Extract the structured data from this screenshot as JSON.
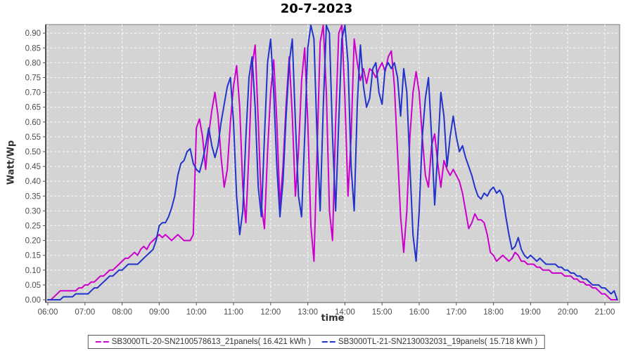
{
  "title": "20-7-2023",
  "colors": {
    "series1": "#CC00CC",
    "series2": "#2233CC",
    "plot_bg": "#D4D4D4",
    "grid": "#FFFFFF",
    "tick_text": "#4D4D4D",
    "axis": "#555555"
  },
  "chart_data": {
    "type": "line",
    "title": "20-7-2023",
    "xlabel": "time",
    "ylabel": "Watt/Wp",
    "legend_position": "bottom",
    "grid": true,
    "plot_background": "#D4D4D4",
    "x_start_hour": 6,
    "x_interval_min": 5,
    "x_ticks": [
      "06:00",
      "07:00",
      "08:00",
      "09:00",
      "10:00",
      "11:00",
      "12:00",
      "13:00",
      "14:00",
      "15:00",
      "16:00",
      "17:00",
      "18:00",
      "19:00",
      "20:00",
      "21:00"
    ],
    "y_ticks": [
      "0.00",
      "0.05",
      "0.10",
      "0.15",
      "0.20",
      "0.25",
      "0.30",
      "0.35",
      "0.40",
      "0.45",
      "0.50",
      "0.55",
      "0.60",
      "0.65",
      "0.70",
      "0.75",
      "0.80",
      "0.85",
      "0.90"
    ],
    "ylim": [
      0,
      0.93
    ],
    "series": [
      {
        "name": "SB3000TL-20-SN2100578613_21panels( 16.421 kWh )",
        "color": "#CC00CC",
        "values": [
          0.0,
          0.0,
          0.01,
          0.02,
          0.03,
          0.03,
          0.03,
          0.03,
          0.03,
          0.03,
          0.04,
          0.04,
          0.05,
          0.05,
          0.06,
          0.06,
          0.07,
          0.08,
          0.08,
          0.09,
          0.1,
          0.1,
          0.11,
          0.12,
          0.13,
          0.14,
          0.14,
          0.15,
          0.16,
          0.15,
          0.17,
          0.18,
          0.17,
          0.19,
          0.2,
          0.21,
          0.22,
          0.21,
          0.22,
          0.21,
          0.2,
          0.21,
          0.22,
          0.21,
          0.2,
          0.2,
          0.2,
          0.22,
          0.58,
          0.61,
          0.55,
          0.44,
          0.56,
          0.64,
          0.7,
          0.62,
          0.48,
          0.38,
          0.44,
          0.6,
          0.72,
          0.79,
          0.65,
          0.38,
          0.26,
          0.5,
          0.79,
          0.86,
          0.6,
          0.32,
          0.24,
          0.5,
          0.7,
          0.81,
          0.6,
          0.32,
          0.45,
          0.66,
          0.82,
          0.62,
          0.35,
          0.5,
          0.74,
          0.85,
          0.6,
          0.25,
          0.13,
          0.5,
          0.87,
          0.93,
          0.7,
          0.3,
          0.2,
          0.6,
          0.9,
          0.93,
          0.68,
          0.35,
          0.55,
          0.88,
          0.8,
          0.74,
          0.78,
          0.73,
          0.78,
          0.77,
          0.75,
          0.78,
          0.8,
          0.77,
          0.82,
          0.84,
          0.72,
          0.5,
          0.28,
          0.16,
          0.3,
          0.55,
          0.7,
          0.77,
          0.7,
          0.55,
          0.42,
          0.38,
          0.52,
          0.56,
          0.46,
          0.38,
          0.47,
          0.44,
          0.42,
          0.44,
          0.42,
          0.4,
          0.36,
          0.3,
          0.24,
          0.26,
          0.29,
          0.27,
          0.27,
          0.26,
          0.22,
          0.16,
          0.15,
          0.13,
          0.14,
          0.15,
          0.14,
          0.13,
          0.14,
          0.16,
          0.15,
          0.13,
          0.13,
          0.12,
          0.12,
          0.12,
          0.11,
          0.11,
          0.1,
          0.1,
          0.1,
          0.09,
          0.09,
          0.09,
          0.09,
          0.08,
          0.08,
          0.08,
          0.07,
          0.07,
          0.06,
          0.06,
          0.05,
          0.05,
          0.04,
          0.04,
          0.03,
          0.02,
          0.02,
          0.01,
          0.0,
          0.0,
          0.0
        ]
      },
      {
        "name": "SB3000TL-21-SN2130032031_19panels( 15.718 kWh )",
        "color": "#2233CC",
        "values": [
          0.0,
          0.0,
          0.0,
          0.0,
          0.0,
          0.01,
          0.01,
          0.01,
          0.01,
          0.02,
          0.02,
          0.02,
          0.02,
          0.02,
          0.03,
          0.04,
          0.04,
          0.05,
          0.06,
          0.07,
          0.08,
          0.08,
          0.09,
          0.1,
          0.1,
          0.11,
          0.12,
          0.12,
          0.12,
          0.12,
          0.13,
          0.14,
          0.15,
          0.16,
          0.17,
          0.2,
          0.25,
          0.26,
          0.26,
          0.28,
          0.31,
          0.35,
          0.42,
          0.46,
          0.47,
          0.5,
          0.51,
          0.46,
          0.44,
          0.43,
          0.47,
          0.52,
          0.58,
          0.52,
          0.48,
          0.52,
          0.6,
          0.66,
          0.72,
          0.75,
          0.6,
          0.35,
          0.22,
          0.3,
          0.55,
          0.75,
          0.82,
          0.65,
          0.38,
          0.28,
          0.55,
          0.8,
          0.88,
          0.7,
          0.45,
          0.28,
          0.4,
          0.62,
          0.8,
          0.88,
          0.6,
          0.35,
          0.28,
          0.55,
          0.85,
          0.93,
          0.88,
          0.55,
          0.3,
          0.65,
          0.93,
          0.9,
          0.55,
          0.3,
          0.6,
          0.88,
          0.93,
          0.8,
          0.45,
          0.3,
          0.66,
          0.86,
          0.72,
          0.65,
          0.68,
          0.78,
          0.8,
          0.7,
          0.66,
          0.78,
          0.8,
          0.78,
          0.8,
          0.75,
          0.62,
          0.78,
          0.7,
          0.45,
          0.22,
          0.13,
          0.3,
          0.55,
          0.68,
          0.75,
          0.55,
          0.32,
          0.5,
          0.7,
          0.62,
          0.45,
          0.55,
          0.62,
          0.55,
          0.5,
          0.52,
          0.48,
          0.45,
          0.42,
          0.38,
          0.35,
          0.34,
          0.36,
          0.35,
          0.37,
          0.38,
          0.36,
          0.37,
          0.35,
          0.28,
          0.22,
          0.17,
          0.18,
          0.21,
          0.17,
          0.15,
          0.14,
          0.15,
          0.14,
          0.13,
          0.14,
          0.13,
          0.12,
          0.12,
          0.12,
          0.12,
          0.11,
          0.11,
          0.1,
          0.1,
          0.09,
          0.09,
          0.08,
          0.08,
          0.07,
          0.07,
          0.06,
          0.05,
          0.05,
          0.05,
          0.04,
          0.04,
          0.03,
          0.02,
          0.03,
          0.0
        ]
      }
    ]
  },
  "legend": {
    "items": [
      "SB3000TL-20-SN2100578613_21panels( 16.421 kWh )",
      "SB3000TL-21-SN2130032031_19panels( 15.718 kWh )"
    ]
  }
}
